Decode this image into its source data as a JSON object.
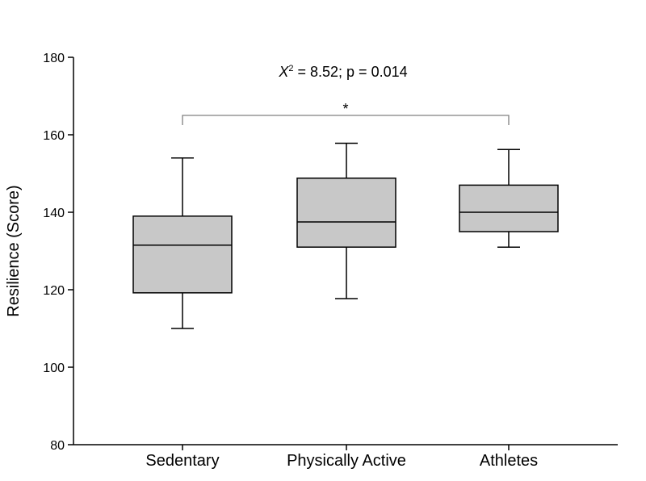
{
  "chart_data": {
    "type": "box",
    "ylabel": "Resilience (Score)",
    "ylim": [
      80,
      180
    ],
    "yticks": [
      80,
      100,
      120,
      140,
      160,
      180
    ],
    "categories": [
      "Sedentary",
      "Physically Active",
      "Athletes"
    ],
    "boxes": [
      {
        "category": "Sedentary",
        "whisker_low": 110,
        "q1": 119.2,
        "median": 131.5,
        "q3": 139,
        "whisker_high": 154
      },
      {
        "category": "Physically Active",
        "whisker_low": 117.7,
        "q1": 131,
        "median": 137.5,
        "q3": 148.8,
        "whisker_high": 157.8
      },
      {
        "category": "Athletes",
        "whisker_low": 131,
        "q1": 135,
        "median": 140,
        "q3": 147,
        "whisker_high": 156.2
      }
    ],
    "annotation": {
      "stat_symbol": "X",
      "stat_superscript": "2",
      "stat_rest": " = 8.52; p = 0.014",
      "significance_marker": "*",
      "bracket_from": "Sedentary",
      "bracket_to": "Athletes",
      "bracket_y": 165
    },
    "box_fill": "#c8c8c8",
    "line_color": "#000000",
    "bracket_color": "#808080",
    "grid": false
  }
}
